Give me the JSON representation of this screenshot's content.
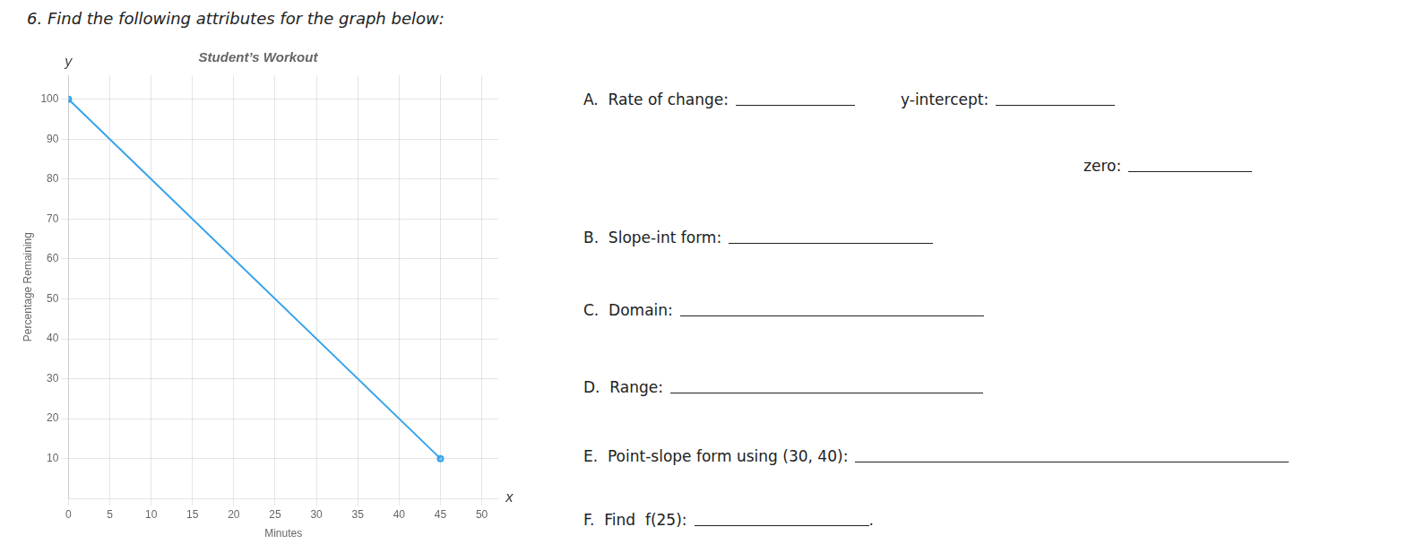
{
  "chart_data": {
    "type": "line",
    "heading": "6. Find the following attributes for the graph below:",
    "title": "Student’s Workout",
    "x_label": "Minutes",
    "y_label": "Percentage Remaining",
    "x": [
      0,
      45
    ],
    "values": [
      100,
      10
    ],
    "xlim": [
      0,
      52
    ],
    "ylim": [
      0,
      106
    ],
    "xticks": [
      0,
      5,
      10,
      15,
      20,
      25,
      30,
      35,
      40,
      45,
      50
    ],
    "yticks": [
      10,
      20,
      30,
      40,
      50,
      60,
      70,
      80,
      90,
      100
    ],
    "grid": true,
    "annotations": [
      "x",
      "y"
    ],
    "questions": [
      "A.  Rate of change:",
      "y-intercept:",
      "zero:",
      "B.  Slope-int form:",
      "C.  Domain:",
      "D.  Range:",
      "E.  Point-slope form using (30, 40):",
      "F.  Find  f(25):"
    ],
    "closing": "."
  }
}
